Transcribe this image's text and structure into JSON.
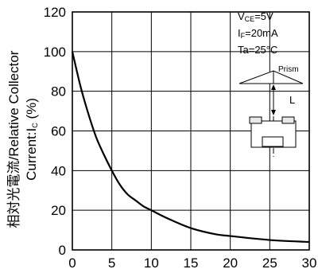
{
  "chart_data": {
    "type": "line",
    "title": "",
    "xlabel": "",
    "ylabel_line1": "相対光電流/Relative Collector",
    "ylabel_line2": "Current:I",
    "ylabel_line2_sub": "C",
    "ylabel_line2_tail": " (%)",
    "xlim": [
      0,
      30
    ],
    "ylim": [
      0,
      120
    ],
    "xticks": [
      0,
      5,
      10,
      15,
      20,
      25,
      30
    ],
    "yticks": [
      0,
      20,
      40,
      60,
      80,
      100,
      120
    ],
    "grid": true,
    "series": [
      {
        "x": [
          0,
          1,
          2,
          3,
          4,
          5,
          6,
          7,
          8,
          9,
          10,
          12,
          15,
          18,
          20,
          25,
          30
        ],
        "y": [
          100,
          83,
          69,
          57,
          48,
          40,
          33,
          28,
          25,
          22,
          20,
          16,
          11,
          8,
          7,
          5,
          4
        ]
      }
    ],
    "conditions": [
      {
        "main": "V",
        "sub": "CE",
        "rest": "=5V"
      },
      {
        "main": "I",
        "sub": "F",
        "rest": "=20mA"
      },
      {
        "main": "Ta=25",
        "sub": "",
        "rest": "°C"
      }
    ],
    "inset": {
      "prism_label": "Prism",
      "distance_label": "L"
    }
  }
}
